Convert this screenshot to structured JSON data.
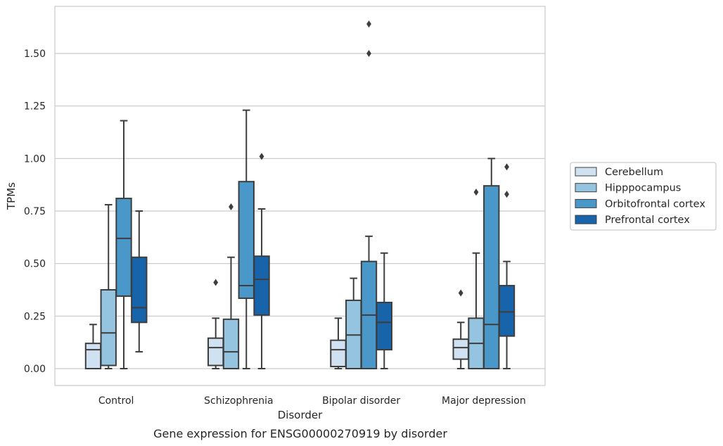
{
  "chart_data": {
    "type": "box",
    "caption": "Gene expression for ENSG00000270919 by disorder",
    "xlabel": "Disorder",
    "ylabel": "TPMs",
    "ylim": [
      -0.08,
      1.72
    ],
    "yticks": [
      0.0,
      0.25,
      0.5,
      0.75,
      1.0,
      1.25,
      1.5
    ],
    "ytick_labels": [
      "0.00",
      "0.25",
      "0.50",
      "0.75",
      "1.00",
      "1.25",
      "1.50"
    ],
    "grid": "horizontal",
    "legend_position": "right",
    "categories": [
      "Control",
      "Schizophrenia",
      "Bipolar disorder",
      "Major depression"
    ],
    "series": [
      {
        "name": "Cerebellum",
        "color": "#d0e1f2",
        "boxes": [
          {
            "whislo": 0.0,
            "q1": 0.0,
            "med": 0.09,
            "q3": 0.12,
            "whishi": 0.21,
            "fliers": []
          },
          {
            "whislo": 0.0,
            "q1": 0.015,
            "med": 0.1,
            "q3": 0.145,
            "whishi": 0.24,
            "fliers": [
              0.41
            ]
          },
          {
            "whislo": 0.0,
            "q1": 0.01,
            "med": 0.09,
            "q3": 0.135,
            "whishi": 0.24,
            "fliers": []
          },
          {
            "whislo": 0.0,
            "q1": 0.045,
            "med": 0.1,
            "q3": 0.14,
            "whishi": 0.22,
            "fliers": [
              0.36
            ]
          }
        ]
      },
      {
        "name": "Hipppocampus",
        "color": "#94c4df",
        "boxes": [
          {
            "whislo": 0.0,
            "q1": 0.015,
            "med": 0.17,
            "q3": 0.375,
            "whishi": 0.78,
            "fliers": []
          },
          {
            "whislo": 0.0,
            "q1": 0.0,
            "med": 0.08,
            "q3": 0.235,
            "whishi": 0.53,
            "fliers": [
              0.77
            ]
          },
          {
            "whislo": 0.0,
            "q1": 0.0,
            "med": 0.16,
            "q3": 0.325,
            "whishi": 0.43,
            "fliers": []
          },
          {
            "whislo": 0.0,
            "q1": 0.0,
            "med": 0.12,
            "q3": 0.24,
            "whishi": 0.55,
            "fliers": [
              0.84
            ]
          }
        ]
      },
      {
        "name": "Orbitofrontal cortex",
        "color": "#4a98c9",
        "boxes": [
          {
            "whislo": 0.0,
            "q1": 0.345,
            "med": 0.62,
            "q3": 0.81,
            "whishi": 1.18,
            "fliers": []
          },
          {
            "whislo": 0.0,
            "q1": 0.335,
            "med": 0.395,
            "q3": 0.89,
            "whishi": 1.23,
            "fliers": []
          },
          {
            "whislo": 0.0,
            "q1": 0.0,
            "med": 0.255,
            "q3": 0.51,
            "whishi": 0.63,
            "fliers": [
              1.5,
              1.64
            ]
          },
          {
            "whislo": 0.0,
            "q1": 0.0,
            "med": 0.21,
            "q3": 0.87,
            "whishi": 1.0,
            "fliers": []
          }
        ]
      },
      {
        "name": "Prefrontal cortex",
        "color": "#1764ab",
        "boxes": [
          {
            "whislo": 0.08,
            "q1": 0.22,
            "med": 0.29,
            "q3": 0.53,
            "whishi": 0.75,
            "fliers": []
          },
          {
            "whislo": 0.0,
            "q1": 0.255,
            "med": 0.425,
            "q3": 0.535,
            "whishi": 0.76,
            "fliers": [
              1.01
            ]
          },
          {
            "whislo": 0.0,
            "q1": 0.09,
            "med": 0.22,
            "q3": 0.315,
            "whishi": 0.55,
            "fliers": []
          },
          {
            "whislo": 0.0,
            "q1": 0.155,
            "med": 0.27,
            "q3": 0.395,
            "whishi": 0.51,
            "fliers": [
              0.83,
              0.96
            ]
          }
        ]
      }
    ]
  }
}
